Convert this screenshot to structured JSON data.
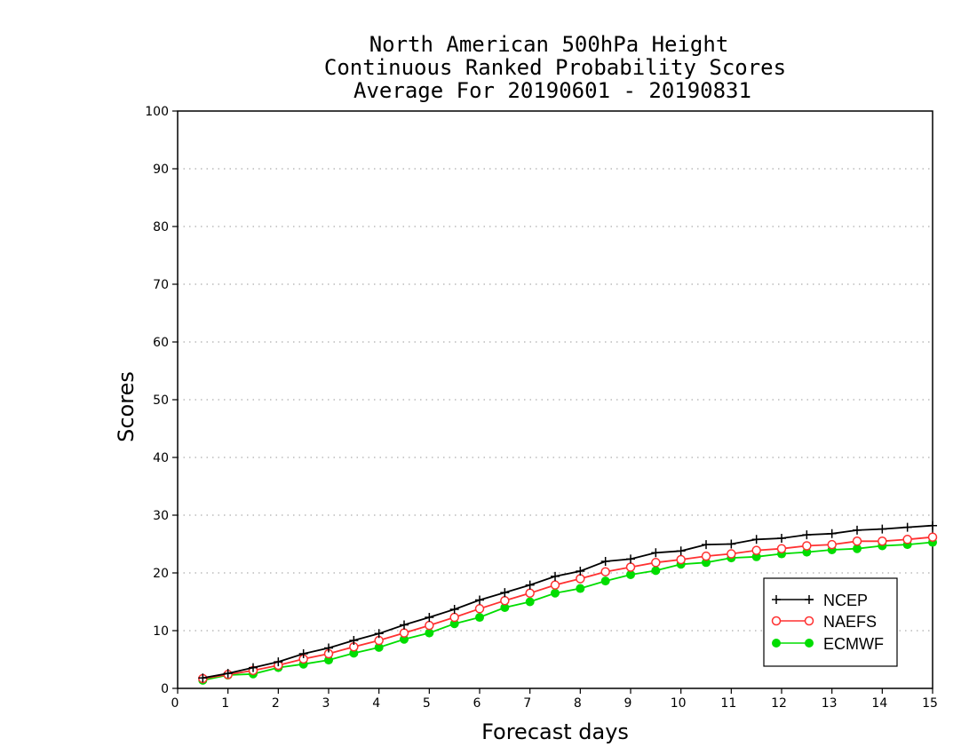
{
  "chart_data": {
    "type": "line",
    "title": [
      "North American 500hPa Height",
      "Continuous Ranked Probability Scores",
      "Average For 20190601 - 20190831"
    ],
    "xlabel": "Forecast days",
    "ylabel": "Scores",
    "xlim": [
      0,
      15
    ],
    "ylim": [
      0,
      100
    ],
    "xticks": [
      0,
      1,
      2,
      3,
      4,
      5,
      6,
      7,
      8,
      9,
      10,
      11,
      12,
      13,
      14,
      15
    ],
    "yticks": [
      0,
      10,
      20,
      30,
      40,
      50,
      60,
      70,
      80,
      90,
      100
    ],
    "grid": "horizontal dotted",
    "legend_position": "bottom-right",
    "x": [
      0.5,
      1,
      1.5,
      2,
      2.5,
      3,
      3.5,
      4,
      4.5,
      5,
      5.5,
      6,
      6.5,
      7,
      7.5,
      8,
      8.5,
      9,
      9.5,
      10,
      10.5,
      11,
      11.5,
      12,
      12.5,
      13,
      13.5,
      14,
      14.5,
      15
    ],
    "series": [
      {
        "name": "NCEP",
        "color": "#000000",
        "marker": "plus",
        "values": [
          1.8,
          2.6,
          3.6,
          4.6,
          6.0,
          7.0,
          8.3,
          9.5,
          11.0,
          12.3,
          13.7,
          15.3,
          16.6,
          17.9,
          19.4,
          20.3,
          22.0,
          22.4,
          23.5,
          23.8,
          24.9,
          25.0,
          25.8,
          26.0,
          26.6,
          26.8,
          27.4,
          27.6,
          27.9,
          28.2
        ]
      },
      {
        "name": "NAEFS",
        "color": "#ff3030",
        "marker": "open-circle",
        "values": [
          1.7,
          2.4,
          3.1,
          4.0,
          5.1,
          6.0,
          7.2,
          8.3,
          9.6,
          10.9,
          12.3,
          13.8,
          15.2,
          16.5,
          17.9,
          19.0,
          20.2,
          21.0,
          21.8,
          22.3,
          22.9,
          23.3,
          23.9,
          24.2,
          24.7,
          24.9,
          25.5,
          25.5,
          25.8,
          26.2
        ]
      },
      {
        "name": "ECMWF",
        "color": "#00dd00",
        "marker": "filled-circle",
        "values": [
          1.4,
          2.3,
          2.5,
          3.6,
          4.2,
          4.9,
          6.1,
          7.1,
          8.5,
          9.6,
          11.2,
          12.3,
          14.0,
          15.0,
          16.5,
          17.3,
          18.6,
          19.7,
          20.4,
          21.5,
          21.8,
          22.6,
          22.8,
          23.3,
          23.6,
          24.0,
          24.2,
          24.7,
          24.9,
          25.3
        ]
      }
    ]
  }
}
